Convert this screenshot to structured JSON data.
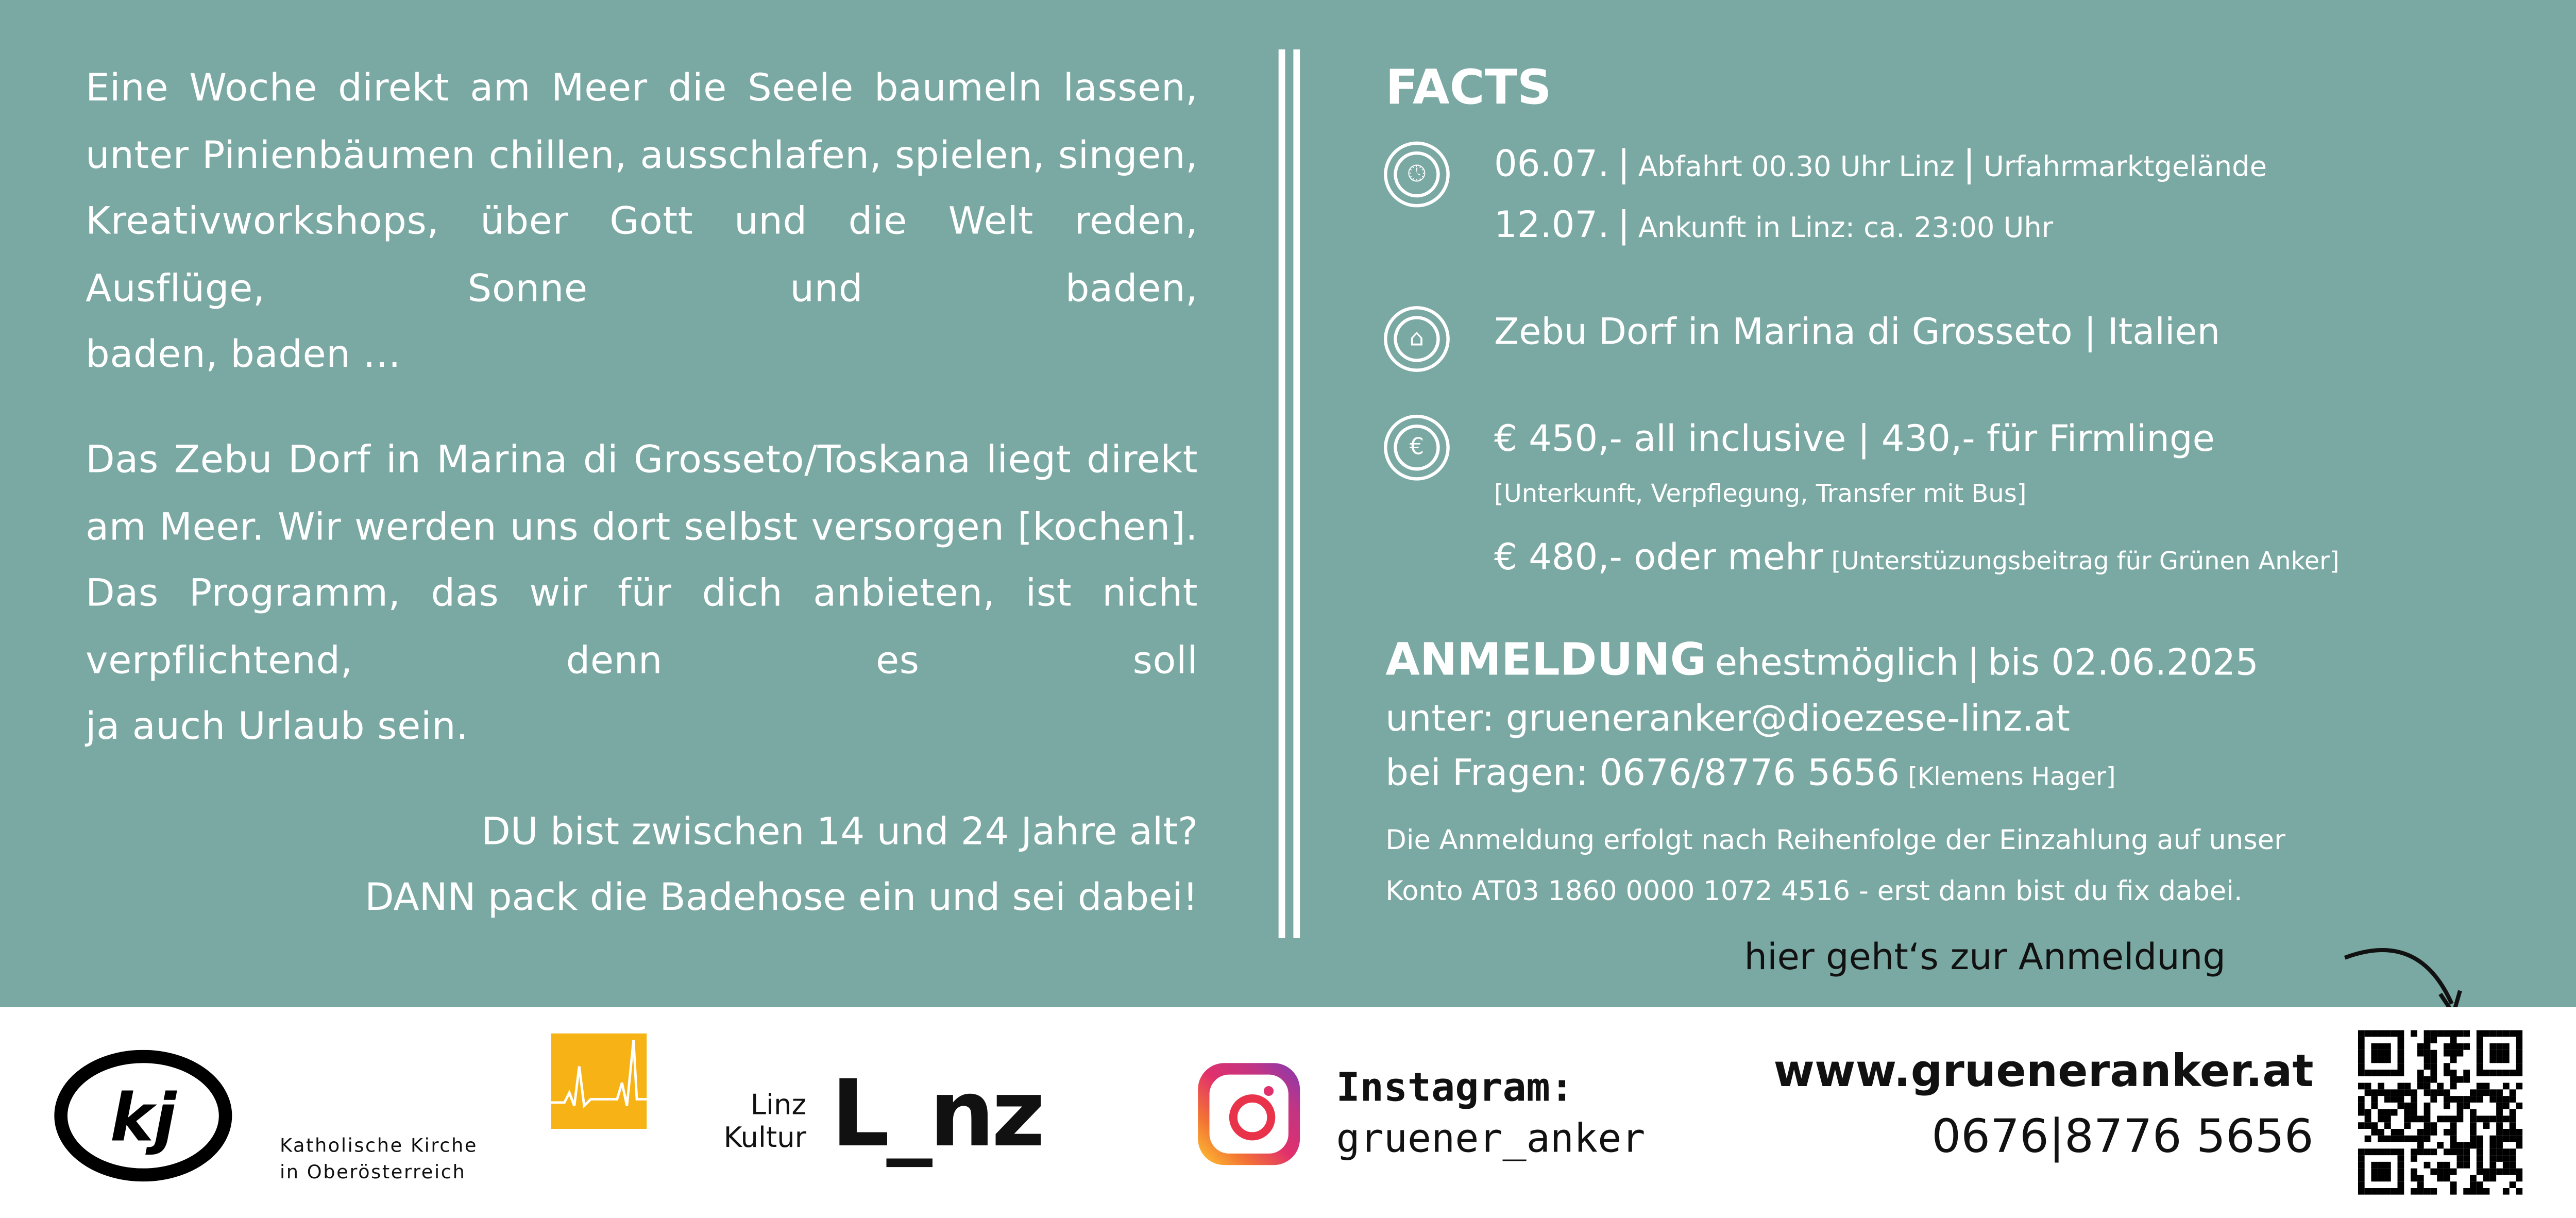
{
  "intro": {
    "paragraph1": "Eine Woche direkt am Meer die Seele baumeln lassen, unter Pinienbäumen chillen, ausschlafen, spielen, singen, Kreativworkshops, über Gott und die Welt reden, Ausflüge, Sonne und baden,",
    "paragraph1_last": "baden, baden …",
    "paragraph2": "Das Zebu Dorf in Marina di Grosseto/Toskana liegt direkt am Meer. Wir werden uns dort selbst versorgen [kochen]. Das Programm, das wir für dich anbieten, ist nicht verpflichtend, denn es soll",
    "paragraph2_last": "ja auch Urlaub sein.",
    "callout_line1": "DU bist zwischen 14 und 24 Jahre alt?",
    "callout_line2": "DANN pack die Badehose ein und sei dabei!"
  },
  "facts": {
    "title": "FACTS",
    "departure_date": "06.07.",
    "departure_info": "Abfahrt 00.30 Uhr Linz",
    "departure_place": "Urfahrmarktgelände",
    "return_date": "12.07.",
    "return_info": "Ankunft in Linz: ca. 23:00 Uhr",
    "location": "Zebu Dorf in Marina di Grosseto",
    "country": "Italien",
    "price_main": "€ 450,- all inclusive",
    "price_firm": "430,- für Firmlinge",
    "price_includes": "[Unterkunft, Verpflegung, Transfer mit Bus]",
    "price_support": "€ 480,- oder mehr",
    "price_support_note": "[Unterstüzungsbeitrag für Grünen Anker]",
    "separator": "|",
    "icons": [
      "clock-icon",
      "house-icon",
      "euro-icon"
    ]
  },
  "registration": {
    "title": "ANMELDUNG",
    "when": "ehestmöglich",
    "deadline": "bis 02.06.2025",
    "email_line": "unter: grueneranker@dioezese-linz.at",
    "phone_line": "bei Fragen: 0676/8776 5656",
    "contact_person": "[Klemens Hager]",
    "note_line1": "Die Anmeldung erfolgt nach Reihenfolge der Einzahlung auf unser",
    "note_line2": "Konto AT03 1860 0000 1072 4516 - erst dann bist du fix dabei.",
    "qr_hint": "hier geht‘s zur Anmeldung"
  },
  "footer": {
    "kj_logo": "kj",
    "church_line1": "Katholische Kirche",
    "church_line2": "in Oberösterreich",
    "linz_kultur_line1": "Linz",
    "linz_kultur_line2": "Kultur",
    "linz_logo": "L_nz",
    "instagram_label": "Instagram:",
    "instagram_handle": "gruener_anker",
    "website": "www.grueneranker.at",
    "phone": "0676|8776 5656"
  },
  "colors": {
    "background": "#7aa8a3",
    "church_yellow": "#f7b316",
    "text": "#ffffff"
  }
}
